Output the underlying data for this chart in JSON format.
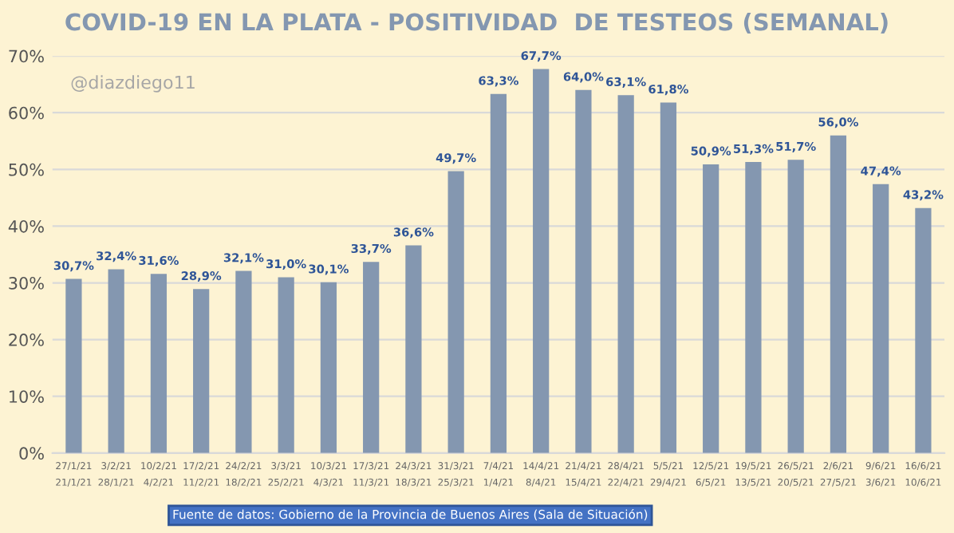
{
  "chart_data": {
    "type": "bar",
    "title": "COVID-19 EN LA PLATA - POSITIVIDAD  DE TESTEOS (SEMANAL)",
    "categories": [
      "27/1/21\n21/1/21",
      "3/2/21\n28/1/21",
      "10/2/21\n4/2/21",
      "17/2/21\n11/2/21",
      "24/2/21\n18/2/21",
      "3/3/21\n25/2/21",
      "10/3/21\n4/3/21",
      "17/3/21\n11/3/21",
      "24/3/21\n18/3/21",
      "31/3/21\n25/3/21",
      "7/4/21\n1/4/21",
      "14/4/21\n8/4/21",
      "21/4/21\n15/4/21",
      "28/4/21\n22/4/21",
      "5/5/21\n29/4/21",
      "12/5/21\n6/5/21",
      "19/5/21\n13/5/21",
      "26/5/21\n20/5/21",
      "2/6/21\n27/5/21",
      "9/6/21\n3/6/21",
      "16/6/21\n10/6/21"
    ],
    "values": [
      30.7,
      32.4,
      31.6,
      28.9,
      32.1,
      31.0,
      30.1,
      33.7,
      36.6,
      49.7,
      63.3,
      67.7,
      64.0,
      63.1,
      61.8,
      50.9,
      51.3,
      51.7,
      56.0,
      47.4,
      43.2
    ],
    "value_labels": [
      "30,7%",
      "32,4%",
      "31,6%",
      "28,9%",
      "32,1%",
      "31,0%",
      "30,1%",
      "33,7%",
      "36,6%",
      "49,7%",
      "63,3%",
      "67,7%",
      "64,0%",
      "63,1%",
      "61,8%",
      "50,9%",
      "51,3%",
      "51,7%",
      "56,0%",
      "47,4%",
      "43,2%"
    ],
    "color": "#8497b0",
    "ylim": [
      0,
      70
    ],
    "yticks": [
      {
        "value": 0,
        "label": "0%"
      },
      {
        "value": 10,
        "label": "10%"
      },
      {
        "value": 20,
        "label": "20%"
      },
      {
        "value": 30,
        "label": "30%"
      },
      {
        "value": 40,
        "label": "40%"
      },
      {
        "value": 50,
        "label": "50%"
      },
      {
        "value": 60,
        "label": "60%"
      },
      {
        "value": 70,
        "label": "70%"
      }
    ],
    "grid": "y",
    "annotations": [
      "@diazdiego11",
      "Fuente de datos: Gobierno de la Provincia de Buenos Aires (Sala de Situación)"
    ]
  }
}
